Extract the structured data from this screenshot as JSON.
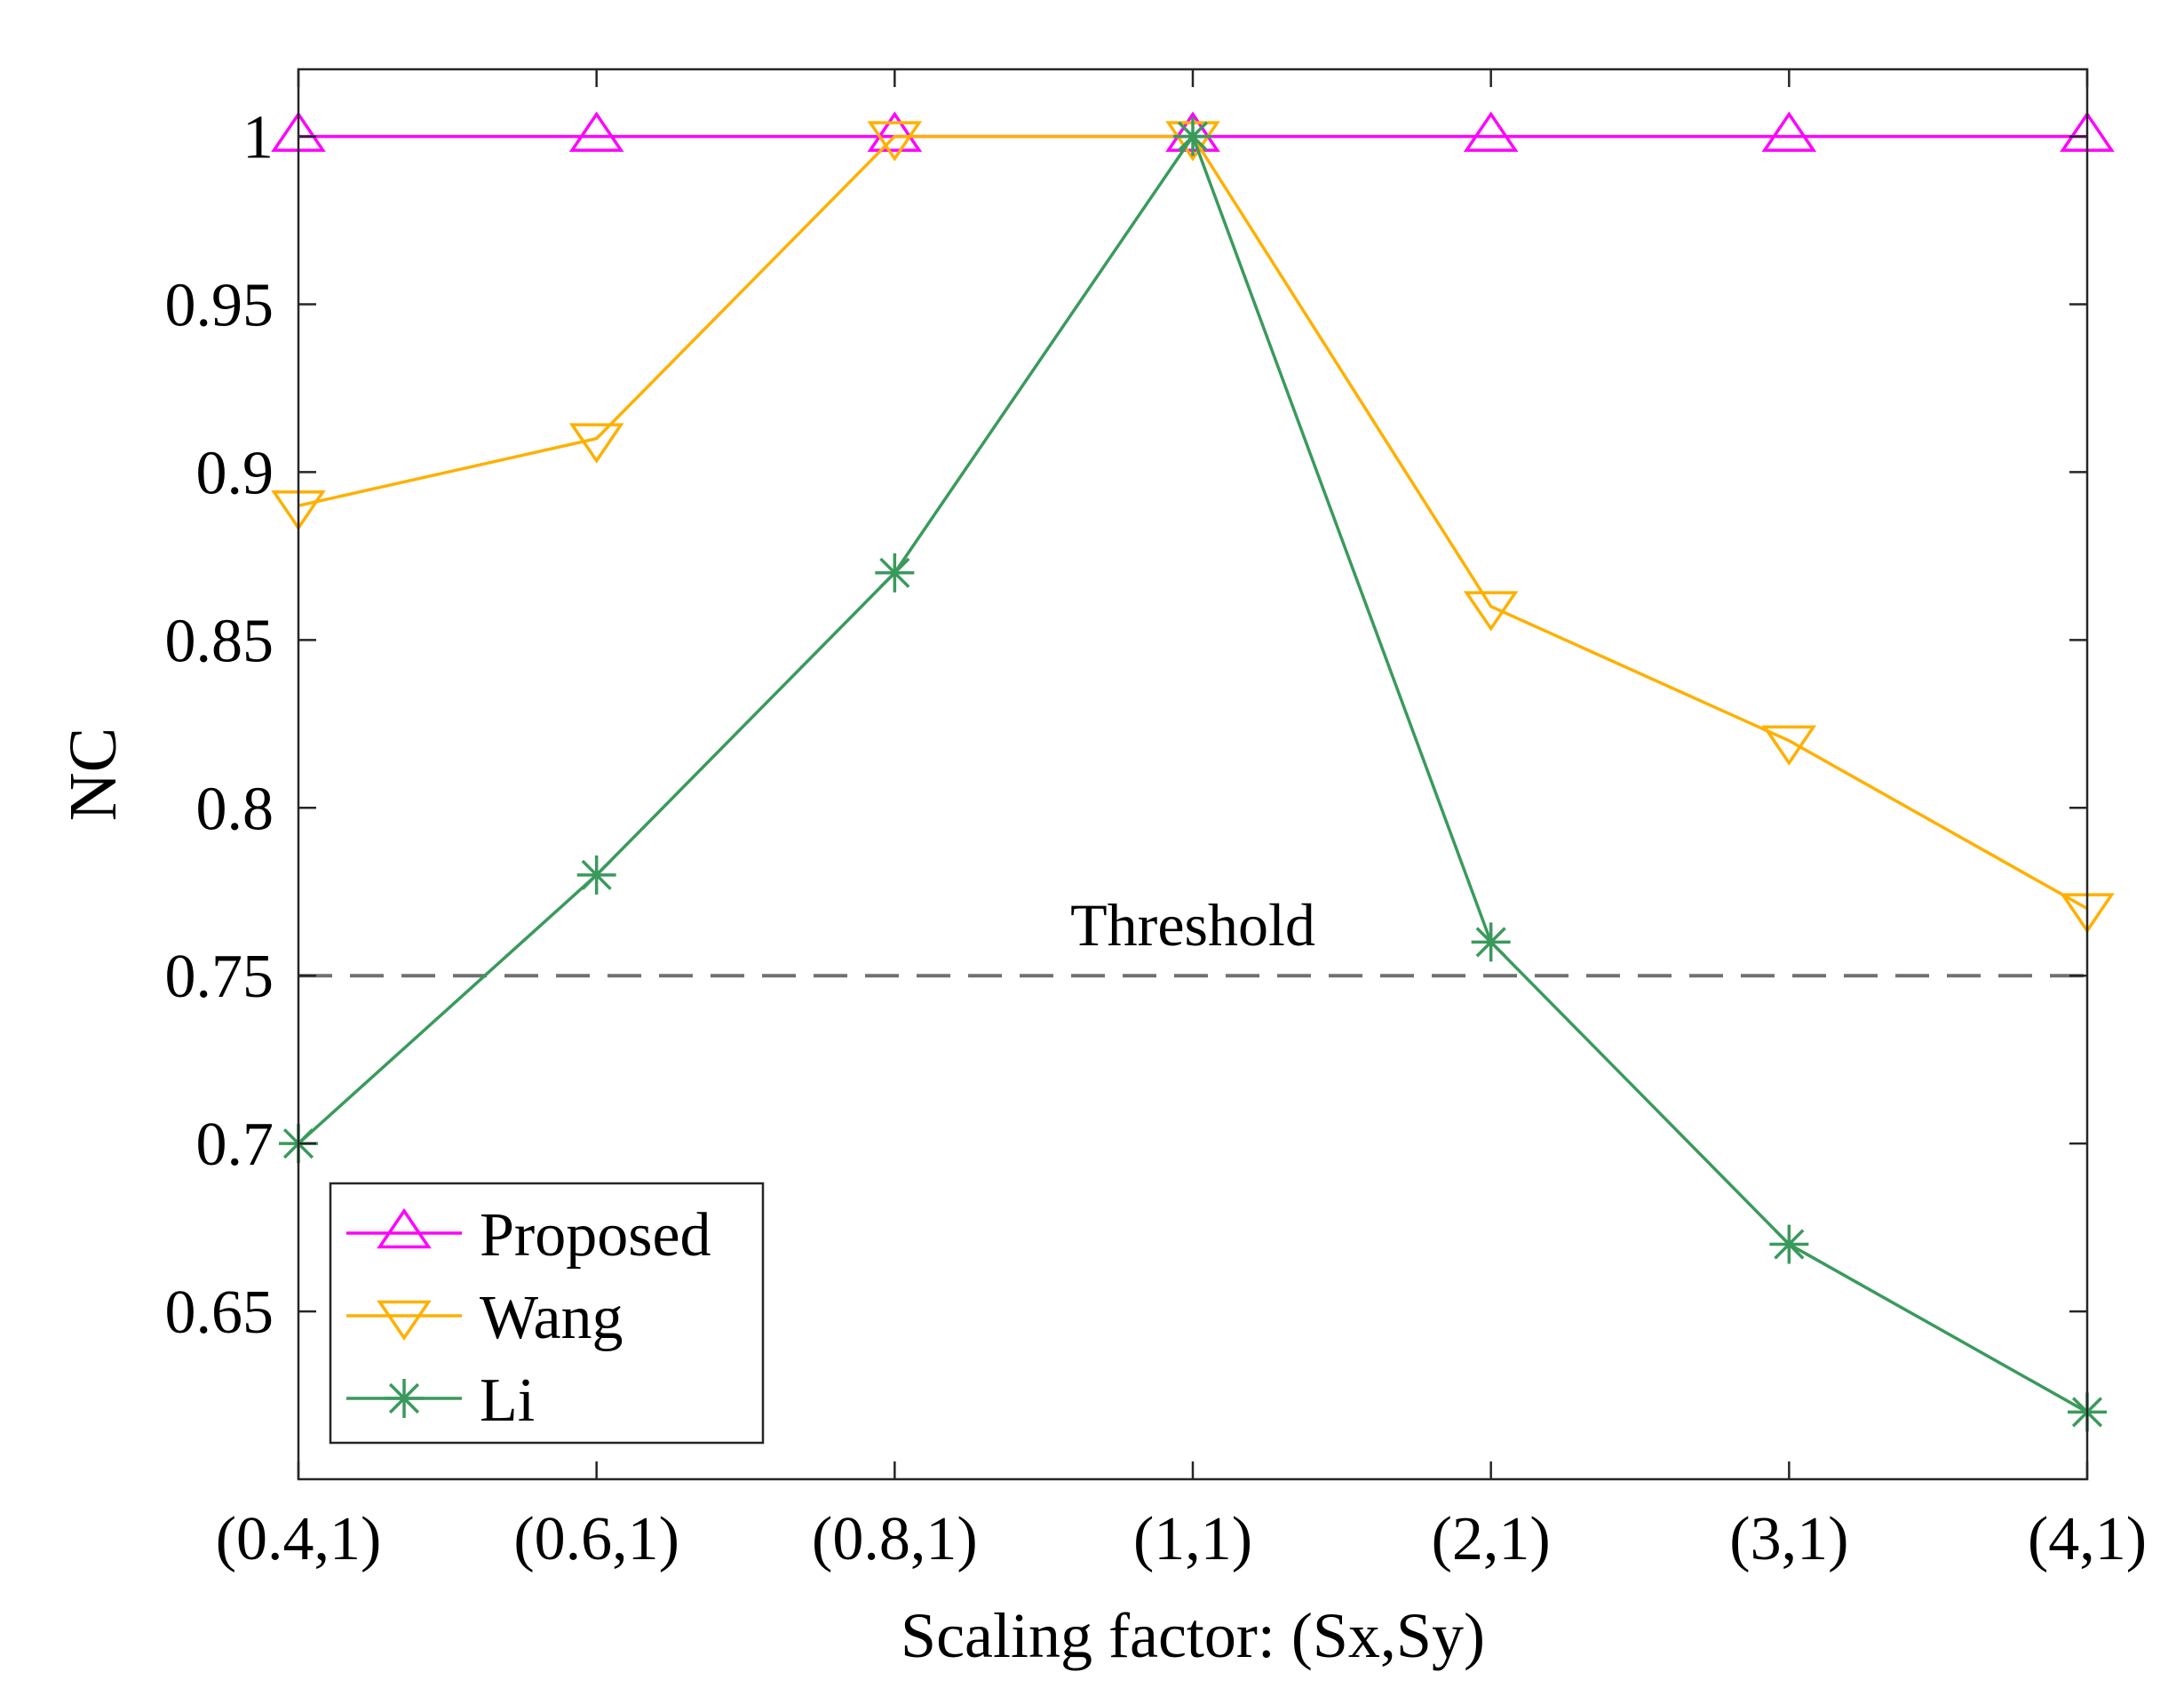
{
  "chart_data": {
    "type": "line",
    "title": "",
    "xlabel": "Scaling factor: (Sx,Sy)",
    "ylabel": "NC",
    "categories": [
      "(0.4,1)",
      "(0.6,1)",
      "(0.8,1)",
      "(1,1)",
      "(2,1)",
      "(3,1)",
      "(4,1)"
    ],
    "ylim": [
      0.6,
      1.02
    ],
    "yticks": [
      0.65,
      0.7,
      0.75,
      0.8,
      0.85,
      0.9,
      0.95,
      1
    ],
    "ytick_labels": [
      "0.65",
      "0.7",
      "0.75",
      "0.8",
      "0.85",
      "0.9",
      "0.95",
      "1"
    ],
    "grid": false,
    "legend_position": "bottom-left",
    "series": [
      {
        "name": "Proposed",
        "marker": "triangle-up",
        "color": "#ff00ff",
        "values": [
          1,
          1,
          1,
          1,
          1,
          1,
          1
        ]
      },
      {
        "name": "Wang",
        "marker": "triangle-down",
        "color": "#ffb000",
        "values": [
          0.89,
          0.91,
          1,
          1,
          0.86,
          0.82,
          0.77
        ]
      },
      {
        "name": "Li",
        "marker": "asterisk",
        "color": "#3a9a5c",
        "values": [
          0.7,
          0.78,
          0.87,
          1,
          0.76,
          0.67,
          0.62
        ]
      }
    ],
    "threshold": {
      "value": 0.75,
      "label": "Threshold",
      "color": "#707070"
    }
  }
}
